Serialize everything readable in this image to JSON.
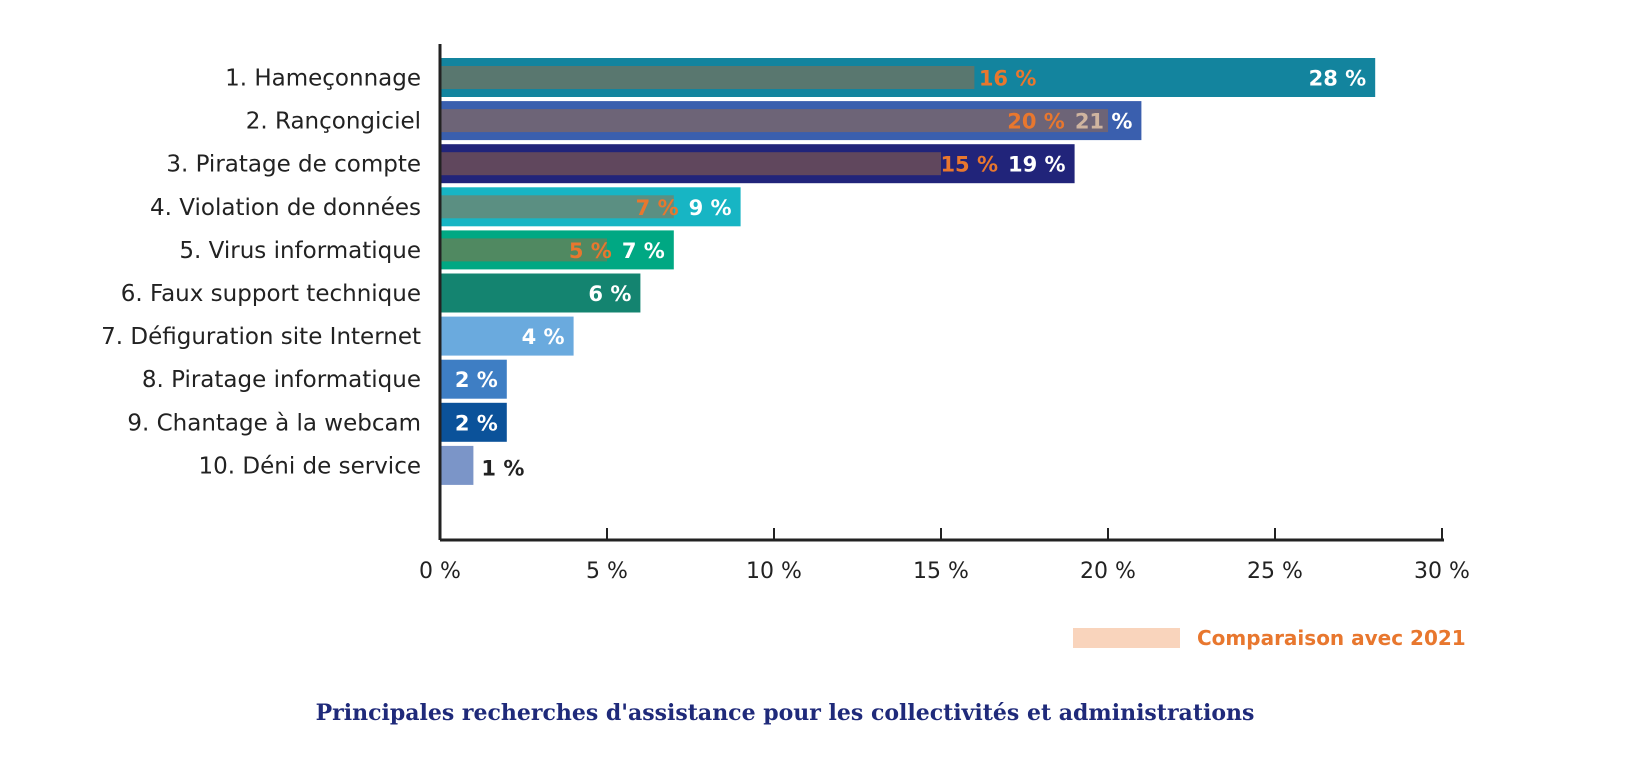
{
  "chart_data": {
    "type": "bar",
    "orientation": "horizontal",
    "title": "Principales recherches d'assistance pour les collectivités et administrations",
    "categories": [
      "1. Hameçonnage",
      "2. Rançongiciel",
      "3. Piratage de compte",
      "4. Violation de données",
      "5. Virus informatique",
      "6. Faux support technique",
      "7. Défiguration site Internet",
      "8. Piratage informatique",
      "9. Chantage à la webcam",
      "10. Déni de service"
    ],
    "series": [
      {
        "values": [
          28,
          21,
          19,
          9,
          7,
          6,
          4,
          2,
          2,
          1
        ],
        "labels": [
          "28 %",
          "21 %",
          "19 %",
          "9 %",
          "7 %",
          "6 %",
          "4 %",
          "2 %",
          "2 %",
          "1 %"
        ]
      },
      {
        "name": "Comparaison avec 2021",
        "values": [
          16,
          20,
          15,
          7,
          5,
          null,
          null,
          null,
          null,
          null
        ],
        "labels": [
          "16 %",
          "20 %",
          "15 %",
          "7 %",
          "5 %",
          null,
          null,
          null,
          null,
          null
        ]
      }
    ],
    "xlim": [
      0,
      30
    ],
    "xticks": [
      0,
      5,
      10,
      15,
      20,
      25,
      30
    ],
    "xtick_labels": [
      "0 %",
      "5 %",
      "10 %",
      "15 %",
      "20 %",
      "25 %",
      "30 %"
    ],
    "grid": false,
    "legend": {
      "label": "Comparaison avec 2021",
      "placement": "bottom-right"
    },
    "colors": {
      "bars": [
        "#13849e",
        "#3a5fae",
        "#21247a",
        "#17b5c4",
        "#00a883",
        "#148470",
        "#6aaade",
        "#3e7ec4",
        "#0b529a",
        "#7b95c8"
      ],
      "comparison_overlay": "#a06a40",
      "comparison_label": "#e8772e",
      "legend_swatch": "#f9d4bc",
      "title": "#1f2a7a"
    }
  }
}
